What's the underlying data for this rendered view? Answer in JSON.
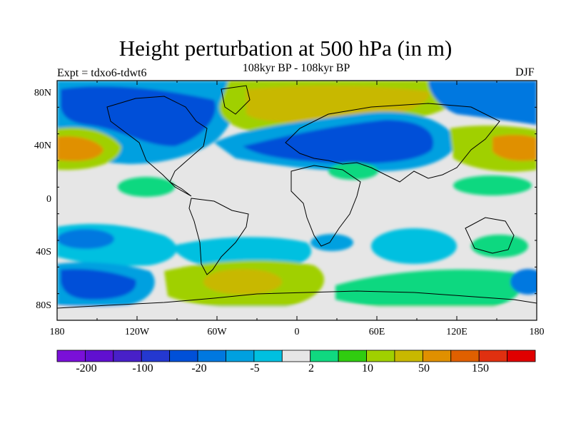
{
  "header": {
    "title": "Height perturbation at 500 hPa (in m)",
    "subtitle": "108kyr BP - 108kyr BP",
    "left_label": "Expt = tdxo6-tdwt6",
    "right_label": "DJF"
  },
  "axes": {
    "lat_ticks": [
      "80N",
      "40N",
      "0",
      "40S",
      "80S"
    ],
    "lon_ticks": [
      "180",
      "120W",
      "60W",
      "0",
      "60E",
      "120E",
      "180"
    ]
  },
  "colorbar": {
    "colors": [
      "#7a10d8",
      "#6010d0",
      "#4820c8",
      "#2438d0",
      "#0050d8",
      "#0078e0",
      "#00a0e0",
      "#00c0e0",
      "#e6e6e6",
      "#10d880",
      "#30cc10",
      "#a0d000",
      "#c8b800",
      "#e09000",
      "#e06000",
      "#e03010",
      "#e00000"
    ],
    "tick_labels": [
      "-200",
      "-100",
      "-20",
      "-5",
      "2",
      "10",
      "50",
      "150"
    ]
  },
  "chart_data": {
    "type": "heatmap",
    "title": "Height perturbation at 500 hPa (in m)",
    "subtitle": "108kyr BP - 108kyr BP",
    "xlabel": "",
    "ylabel": "",
    "xlim": [
      -180,
      180
    ],
    "ylim": [
      -90,
      90
    ],
    "levels": [
      -200,
      -100,
      -20,
      -5,
      2,
      10,
      50,
      150
    ],
    "features": [
      {
        "lon": -90,
        "lat": 60,
        "value": -30
      },
      {
        "lon": -160,
        "lat": 75,
        "value": -25
      },
      {
        "lon": 60,
        "lat": 45,
        "value": -30
      },
      {
        "lon": 20,
        "lat": 70,
        "value": 25
      },
      {
        "lon": -160,
        "lat": 38,
        "value": 25
      },
      {
        "lon": 160,
        "lat": 38,
        "value": 30
      },
      {
        "lon": -150,
        "lat": 10,
        "value": 10
      },
      {
        "lon": -130,
        "lat": -30,
        "value": -15
      },
      {
        "lon": 30,
        "lat": -35,
        "value": -15
      },
      {
        "lon": -160,
        "lat": -65,
        "value": -25
      },
      {
        "lon": -45,
        "lat": -62,
        "value": 25
      },
      {
        "lon": 120,
        "lat": -50,
        "value": 15
      }
    ]
  }
}
